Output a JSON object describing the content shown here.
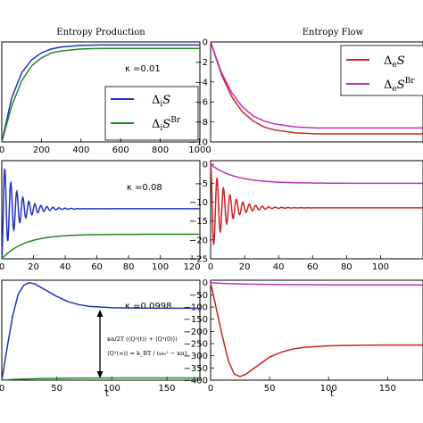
{
  "chart_data": [
    {
      "type": "line",
      "title": "Entropy Production",
      "annotation": "κ =0.01",
      "xticks": [
        "0",
        "200",
        "400",
        "600",
        "800",
        "1000"
      ],
      "xlim": [
        0,
        1000
      ],
      "ylim": [
        0,
        10
      ],
      "series": [
        {
          "name": "ΔiS",
          "color": "#2233bb",
          "x": [
            0,
            50,
            100,
            150,
            200,
            250,
            300,
            400,
            500,
            600,
            800,
            1000
          ],
          "y": [
            0,
            4.4,
            6.9,
            8.2,
            8.9,
            9.3,
            9.5,
            9.65,
            9.7,
            9.7,
            9.7,
            9.7
          ]
        },
        {
          "name": "ΔiS^Br",
          "color": "#228822",
          "x": [
            0,
            50,
            100,
            150,
            200,
            250,
            300,
            400,
            500,
            600,
            800,
            1000
          ],
          "y": [
            0,
            3.6,
            6.1,
            7.6,
            8.4,
            8.9,
            9.1,
            9.3,
            9.35,
            9.35,
            9.35,
            9.35
          ]
        }
      ]
    },
    {
      "type": "line",
      "title": "Entropy Flow",
      "yticks": [
        "0",
        "−2",
        "−4",
        "−6",
        "−8",
        "−10"
      ],
      "xlim": [
        0,
        1000
      ],
      "ylim": [
        -10,
        0
      ],
      "series": [
        {
          "name": "ΔeS",
          "color": "#cc2222",
          "x": [
            0,
            50,
            100,
            150,
            200,
            250,
            300,
            400,
            500,
            600,
            800,
            1000
          ],
          "y": [
            0,
            -3.2,
            -5.5,
            -7.0,
            -7.9,
            -8.5,
            -8.8,
            -9.1,
            -9.2,
            -9.2,
            -9.2,
            -9.2
          ]
        },
        {
          "name": "ΔeS^Br",
          "color": "#bb33bb",
          "x": [
            0,
            50,
            100,
            150,
            200,
            250,
            300,
            400,
            500,
            600,
            800,
            1000
          ],
          "y": [
            0,
            -3.0,
            -5.1,
            -6.5,
            -7.4,
            -7.9,
            -8.2,
            -8.5,
            -8.6,
            -8.6,
            -8.6,
            -8.6
          ]
        }
      ]
    },
    {
      "type": "line",
      "annotation": "κ =0.08",
      "xticks": [
        "0",
        "20",
        "40",
        "60",
        "80",
        "100",
        "120"
      ],
      "xlim": [
        0,
        125
      ],
      "ylim": [
        0,
        10
      ],
      "series": [
        {
          "name": "ΔiS",
          "color": "#2233bb",
          "kind": "oscillation",
          "base": 5.1,
          "amp": 5.0,
          "period": 3.8,
          "decay": 0.11,
          "phase": -1.5708
        },
        {
          "name": "ΔiS^Br",
          "color": "#228822",
          "kind": "rise",
          "end": 2.5,
          "rate": 0.07
        }
      ]
    },
    {
      "type": "line",
      "yticks": [
        "0",
        "−5",
        "−10",
        "−15",
        "−20",
        "−25"
      ],
      "xticks": [
        "0",
        "20",
        "40",
        "60",
        "80",
        "100"
      ],
      "xlim": [
        0,
        125
      ],
      "ylim": [
        -25,
        1
      ],
      "series": [
        {
          "name": "ΔeS",
          "color": "#cc2222",
          "kind": "oscillation",
          "base": -11.5,
          "amp": 12.0,
          "period": 3.8,
          "decay": 0.11,
          "phase": 1.5708
        },
        {
          "name": "ΔeS^Br",
          "color": "#bb33bb",
          "kind": "rise",
          "end": -5.0,
          "rate": 0.07
        }
      ]
    },
    {
      "type": "line",
      "annotation": "κ =0.0998",
      "equation_lines": [
        "κα/2T (⟨Q²(t)⟩ + ⟨Q²(0)⟩)",
        "⟨Q²(∞)⟩ = k_BT / (ω₀² − κα)"
      ],
      "xlabel": "t",
      "xticks": [
        "0",
        "50",
        "100",
        "150"
      ],
      "xlim": [
        0,
        180
      ],
      "ylim": [
        0,
        400
      ],
      "series": [
        {
          "name": "ΔiS",
          "color": "#2233bb",
          "x": [
            0,
            3,
            6,
            10,
            15,
            20,
            25,
            30,
            40,
            50,
            60,
            70,
            80,
            100,
            120,
            150,
            180
          ],
          "y": [
            0,
            80,
            160,
            260,
            345,
            380,
            390,
            385,
            360,
            335,
            315,
            302,
            295,
            290,
            289,
            288,
            288
          ]
        },
        {
          "name": "ΔiS^Br",
          "color": "#228822",
          "x": [
            0,
            10,
            30,
            60,
            100,
            180
          ],
          "y": [
            0,
            3,
            6,
            8,
            9,
            9
          ]
        }
      ]
    },
    {
      "type": "line",
      "yticks": [
        "0",
        "−50",
        "−100",
        "−150",
        "−200",
        "−250",
        "−300",
        "−350",
        "−400"
      ],
      "xlabel": "t",
      "xticks": [
        "0",
        "50",
        "100",
        "150"
      ],
      "xlim": [
        0,
        180
      ],
      "ylim": [
        -400,
        10
      ],
      "series": [
        {
          "name": "ΔeS",
          "color": "#cc2222",
          "x": [
            0,
            5,
            10,
            15,
            20,
            25,
            30,
            40,
            50,
            60,
            70,
            80,
            100,
            120,
            150,
            180
          ],
          "y": [
            0,
            -110,
            -220,
            -320,
            -375,
            -385,
            -375,
            -340,
            -305,
            -285,
            -272,
            -265,
            -259,
            -257,
            -256,
            -256
          ]
        },
        {
          "name": "ΔeS^Br",
          "color": "#bb33bb",
          "x": [
            0,
            10,
            30,
            60,
            100,
            180
          ],
          "y": [
            0,
            -3,
            -6,
            -8,
            -9,
            -9
          ]
        }
      ]
    }
  ]
}
